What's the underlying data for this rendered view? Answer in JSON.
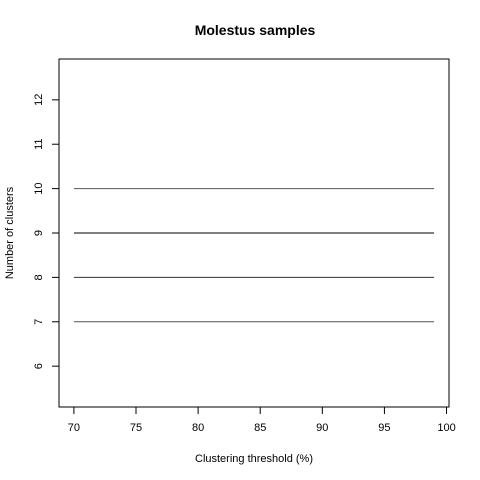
{
  "chart_data": {
    "type": "line",
    "title": "Molestus samples",
    "xlabel": "Clustering threshold (%)",
    "ylabel": "Number of clusters",
    "xlim": [
      68.8,
      100.2
    ],
    "ylim": [
      5.08,
      12.92
    ],
    "xticks": [
      70,
      75,
      80,
      85,
      90,
      95,
      100
    ],
    "yticks": [
      6,
      7,
      8,
      9,
      10,
      11,
      12
    ],
    "grid": false,
    "series": [
      {
        "x": [
          70,
          99
        ],
        "y": [
          10,
          10
        ],
        "color": "#555555"
      },
      {
        "x": [
          70,
          99
        ],
        "y": [
          9,
          9
        ],
        "color": "#000000"
      },
      {
        "x": [
          70,
          99
        ],
        "y": [
          8,
          8
        ],
        "color": "#333333"
      },
      {
        "x": [
          70,
          99
        ],
        "y": [
          7,
          7
        ],
        "color": "#555555"
      }
    ]
  }
}
